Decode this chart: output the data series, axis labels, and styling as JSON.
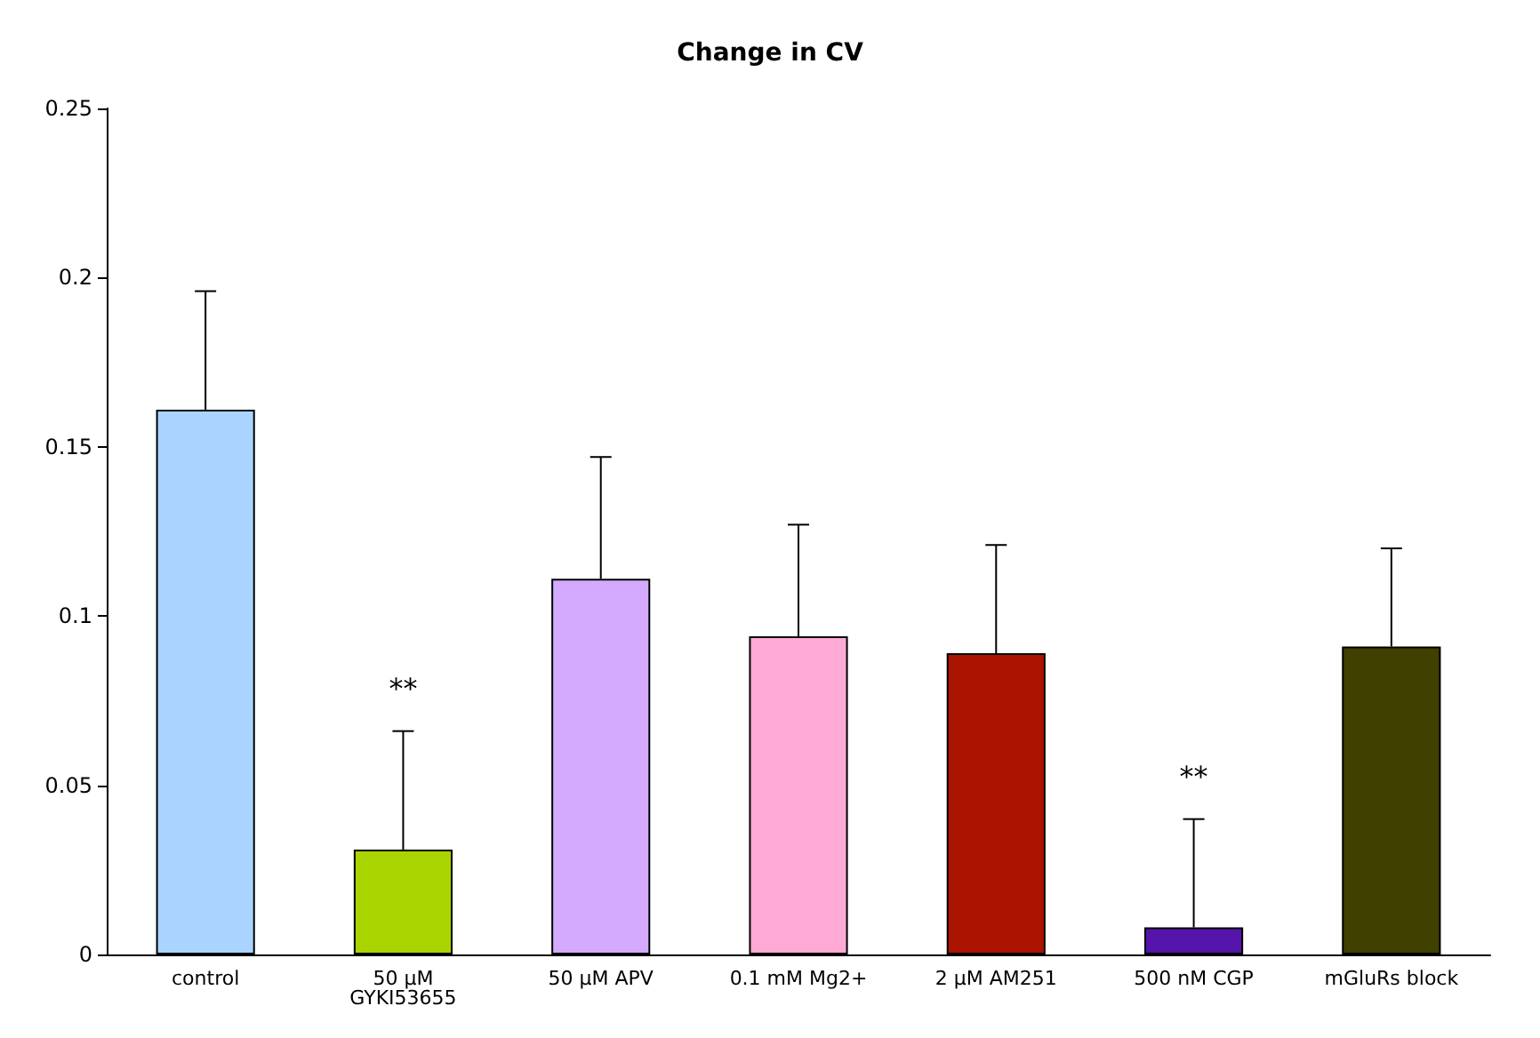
{
  "chart_data": {
    "type": "bar",
    "title": "Change in CV",
    "categories": [
      "control",
      "50 µM\nGYKI53655",
      "50 µM APV",
      "0.1 mM Mg2+",
      "2 µM AM251",
      "500 nM CGP",
      "mGluRs block"
    ],
    "values": [
      0.161,
      0.031,
      0.111,
      0.094,
      0.089,
      0.008,
      0.091
    ],
    "colors": [
      "#aad4ff",
      "#aad400",
      "#d4aaff",
      "#ffaad4",
      "#aa1400",
      "#5514aa",
      "#404000"
    ],
    "errors": [
      [
        0.161,
        0.196
      ],
      [
        0.031,
        0.066
      ],
      [
        0.111,
        0.147
      ],
      [
        0.094,
        0.127
      ],
      [
        0.089,
        0.121
      ],
      [
        0.008,
        0.04
      ],
      [
        0.091,
        0.12
      ]
    ],
    "ylim": [
      0,
      0.25
    ],
    "yticks": [
      0,
      0.05,
      0.1,
      0.15,
      0.2,
      0.25
    ],
    "grid": false,
    "annotations": [
      "**",
      "**"
    ]
  }
}
